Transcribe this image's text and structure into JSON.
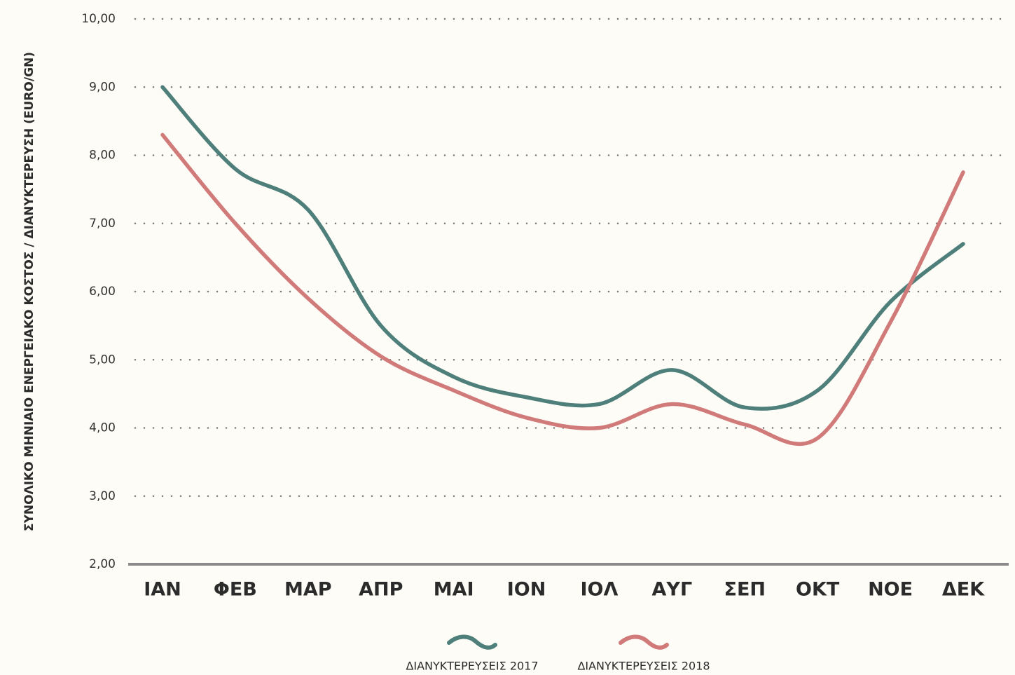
{
  "chart_data": {
    "type": "line",
    "y_axis_label": "ΣΥΝΟΛΙΚΟ ΜΗΝΙΑΙΟ ΕΝΕΡΓΕΙΑΚΟ ΚΟΣΤΟΣ / ΔΙΑΝΥΚΤΕΡΕΥΣΗ (EURO/GN)",
    "categories": [
      "ΙΑΝ",
      "ΦΕΒ",
      "ΜΑΡ",
      "ΑΠΡ",
      "ΜΑΙ",
      "ΙΟΝ",
      "ΙΟΛ",
      "ΑΥΓ",
      "ΣΕΠ",
      "ΟΚΤ",
      "ΝΟΕ",
      "ΔΕΚ"
    ],
    "series": [
      {
        "name": "ΔΙΑΝΥΚΤΕΡΕΥΣΕΙΣ 2017",
        "color": "#4e7f7a",
        "values": [
          9.0,
          7.8,
          7.2,
          5.5,
          4.75,
          4.45,
          4.35,
          4.85,
          4.3,
          4.55,
          5.85,
          6.7
        ]
      },
      {
        "name": "ΔΙΑΝΥΚΤΕΡΕΥΣΕΙΣ 2018",
        "color": "#d17a7a",
        "values": [
          8.3,
          7.0,
          5.9,
          5.05,
          4.55,
          4.15,
          4.0,
          4.35,
          4.05,
          3.85,
          5.55,
          7.75
        ]
      }
    ],
    "ylim": [
      2,
      10
    ],
    "yticks": [
      {
        "value": 2,
        "label": "2,00"
      },
      {
        "value": 3,
        "label": "3,00"
      },
      {
        "value": 4,
        "label": "4,00"
      },
      {
        "value": 5,
        "label": "5,00"
      },
      {
        "value": 6,
        "label": "6,00"
      },
      {
        "value": 7,
        "label": "7,00"
      },
      {
        "value": 8,
        "label": "8,00"
      },
      {
        "value": 9,
        "label": "9,00"
      },
      {
        "value": 10,
        "label": "10,00"
      }
    ],
    "grid": true
  }
}
